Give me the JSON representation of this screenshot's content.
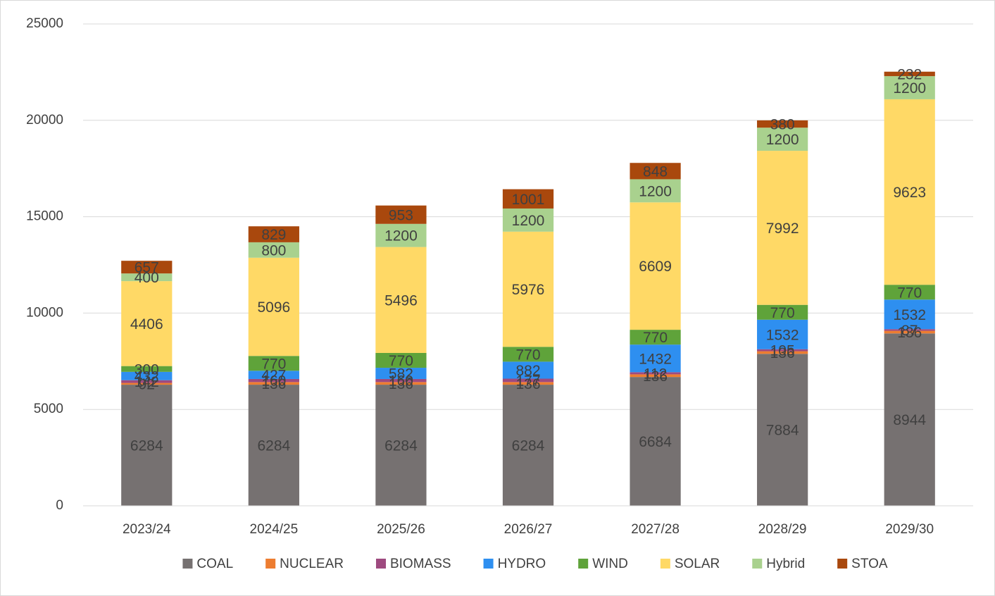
{
  "chart_data": {
    "type": "stacked_bar",
    "categories": [
      "2023/24",
      "2024/25",
      "2025/26",
      "2026/27",
      "2027/28",
      "2028/29",
      "2029/30"
    ],
    "series": [
      {
        "name": "COAL",
        "color": "#767171",
        "values": [
          6284,
          6284,
          6284,
          6284,
          6684,
          7884,
          8944
        ]
      },
      {
        "name": "NUCLEAR",
        "color": "#ed7d31",
        "values": [
          92,
          136,
          136,
          136,
          136,
          136,
          136
        ]
      },
      {
        "name": "BIOMASS",
        "color": "#9e4a7f",
        "values": [
          142,
          160,
          160,
          177,
          112,
          105,
          87
        ]
      },
      {
        "name": "HYDRO",
        "color": "#2e8ff0",
        "values": [
          432,
          427,
          582,
          882,
          1432,
          1532,
          1532
        ]
      },
      {
        "name": "WIND",
        "color": "#5fa33a",
        "values": [
          300,
          770,
          770,
          770,
          770,
          770,
          770
        ]
      },
      {
        "name": "SOLAR",
        "color": "#ffd966",
        "values": [
          4406,
          5096,
          5496,
          5976,
          6609,
          7992,
          9623
        ]
      },
      {
        "name": "Hybrid",
        "color": "#a9d18e",
        "values": [
          400,
          800,
          1200,
          1200,
          1200,
          1200,
          1200
        ]
      },
      {
        "name": "STOA",
        "color": "#a9480d",
        "values": [
          657,
          829,
          953,
          1001,
          848,
          380,
          232
        ]
      }
    ],
    "ylim": [
      0,
      25000
    ],
    "yticks": [
      0,
      5000,
      10000,
      15000,
      20000,
      25000
    ],
    "grid": true,
    "legend": "bottom"
  }
}
